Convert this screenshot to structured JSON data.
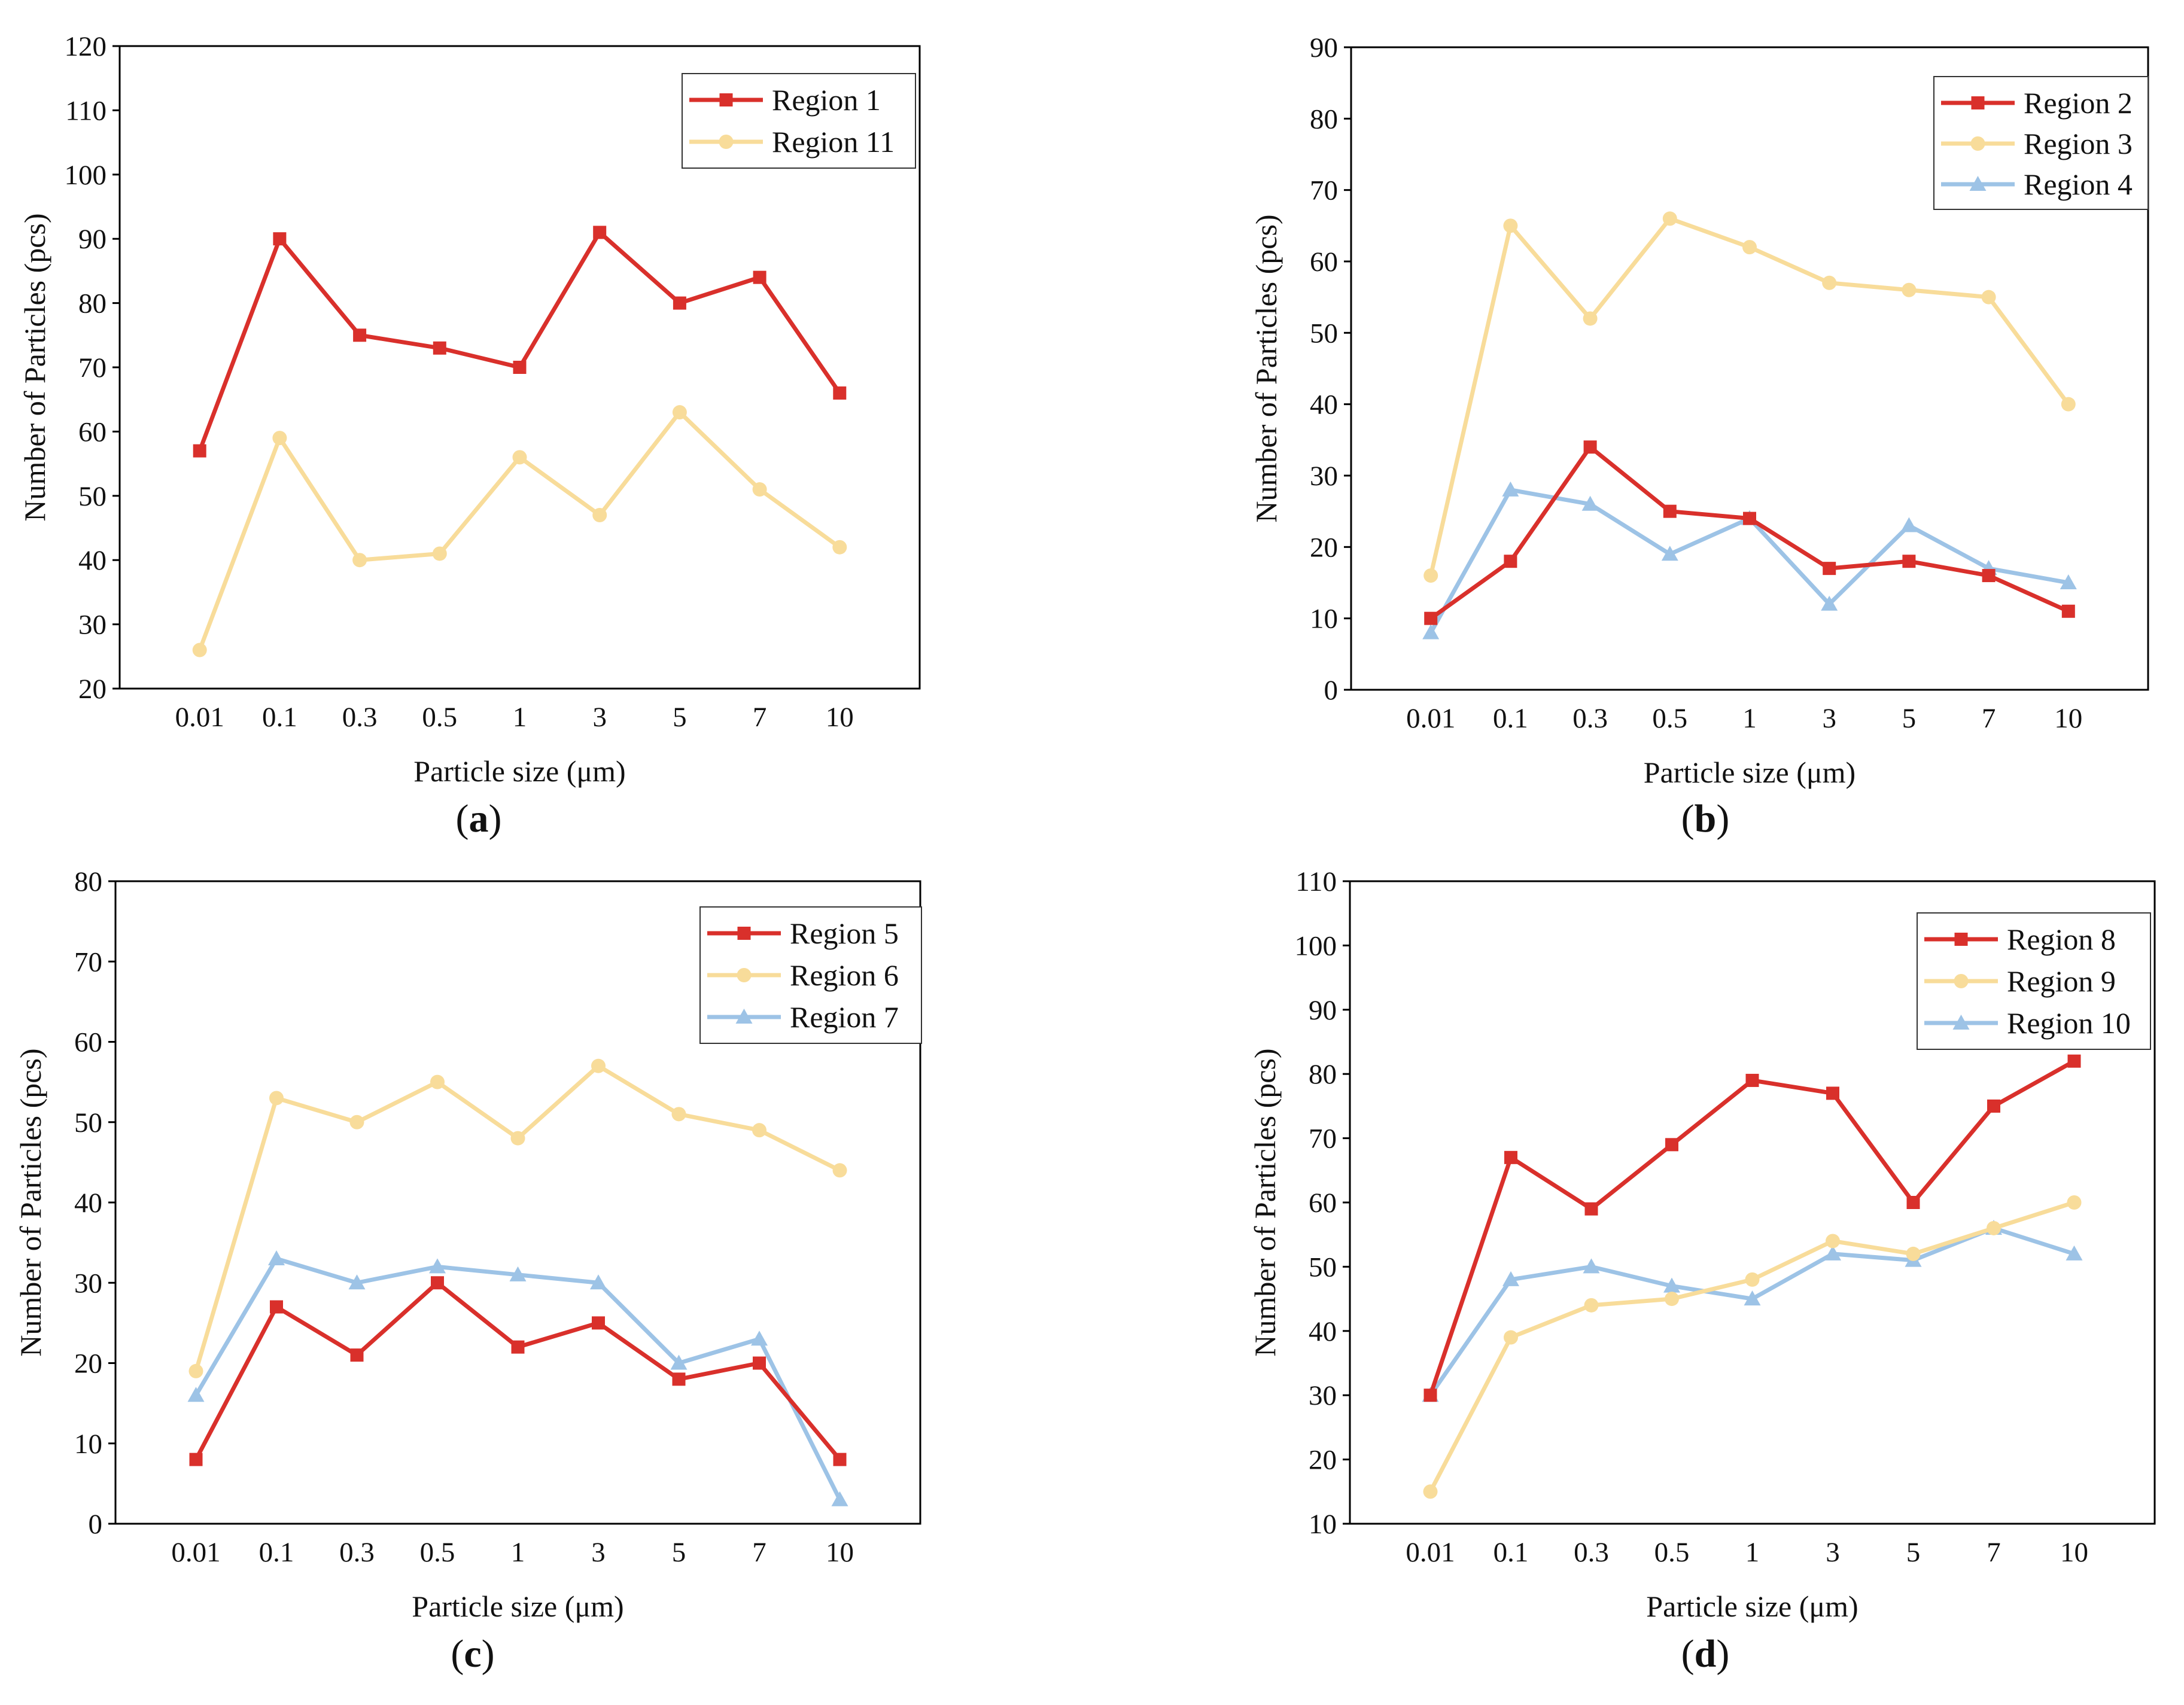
{
  "colors": {
    "red": "#d9302b",
    "yellow": "#f8dc9a",
    "blue": "#9dc3e6",
    "axis": "#000000"
  },
  "chart_data": [
    {
      "type": "line",
      "panel_label": "a",
      "categories": [
        "0.01",
        "0.1",
        "0.3",
        "0.5",
        "1",
        "3",
        "5",
        "7",
        "10"
      ],
      "xlabel": "Particle size (μm)",
      "ylabel": "Number of Particles (pcs)",
      "ylim": [
        20,
        120
      ],
      "yticks": [
        20,
        30,
        40,
        50,
        60,
        70,
        80,
        90,
        100,
        110,
        120
      ],
      "legend_position": "top-right",
      "series": [
        {
          "name": "Region 1",
          "color": "red",
          "marker": "square",
          "values": [
            57,
            90,
            75,
            73,
            70,
            91,
            80,
            84,
            66
          ]
        },
        {
          "name": "Region 11",
          "color": "yellow",
          "marker": "circle",
          "values": [
            26,
            59,
            40,
            41,
            56,
            47,
            63,
            51,
            42
          ]
        }
      ]
    },
    {
      "type": "line",
      "panel_label": "b",
      "categories": [
        "0.01",
        "0.1",
        "0.3",
        "0.5",
        "1",
        "3",
        "5",
        "7",
        "10"
      ],
      "xlabel": "Particle size (μm)",
      "ylabel": "Number of Particles (pcs)",
      "ylim": [
        0,
        90
      ],
      "yticks": [
        0,
        10,
        20,
        30,
        40,
        50,
        60,
        70,
        80,
        90
      ],
      "legend_position": "top-right",
      "series": [
        {
          "name": "Region 2",
          "color": "red",
          "marker": "square",
          "values": [
            10,
            18,
            34,
            25,
            24,
            17,
            18,
            16,
            11
          ]
        },
        {
          "name": "Region 3",
          "color": "yellow",
          "marker": "circle",
          "values": [
            16,
            65,
            52,
            66,
            62,
            57,
            56,
            55,
            40
          ]
        },
        {
          "name": "Region 4",
          "color": "blue",
          "marker": "triangle",
          "values": [
            8,
            28,
            26,
            19,
            24,
            12,
            23,
            17,
            15
          ]
        }
      ]
    },
    {
      "type": "line",
      "panel_label": "c",
      "categories": [
        "0.01",
        "0.1",
        "0.3",
        "0.5",
        "1",
        "3",
        "5",
        "7",
        "10"
      ],
      "xlabel": "Particle size (μm)",
      "ylabel": "Number of Particles (pcs)",
      "ylim": [
        0,
        80
      ],
      "yticks": [
        0,
        10,
        20,
        30,
        40,
        50,
        60,
        70,
        80
      ],
      "legend_position": "top-right",
      "series": [
        {
          "name": "Region 5",
          "color": "red",
          "marker": "square",
          "values": [
            8,
            27,
            21,
            30,
            22,
            25,
            18,
            20,
            8
          ]
        },
        {
          "name": "Region 6",
          "color": "yellow",
          "marker": "circle",
          "values": [
            19,
            53,
            50,
            55,
            48,
            57,
            51,
            49,
            44
          ]
        },
        {
          "name": "Region 7",
          "color": "blue",
          "marker": "triangle",
          "values": [
            16,
            33,
            30,
            32,
            31,
            30,
            20,
            23,
            3
          ]
        }
      ]
    },
    {
      "type": "line",
      "panel_label": "d",
      "categories": [
        "0.01",
        "0.1",
        "0.3",
        "0.5",
        "1",
        "3",
        "5",
        "7",
        "10"
      ],
      "xlabel": "Particle size (μm)",
      "ylabel": "Number of Particles (pcs)",
      "ylim": [
        10,
        110
      ],
      "yticks": [
        10,
        20,
        30,
        40,
        50,
        60,
        70,
        80,
        90,
        100,
        110
      ],
      "legend_position": "top-right",
      "series": [
        {
          "name": "Region 8",
          "color": "red",
          "marker": "square",
          "values": [
            30,
            67,
            59,
            69,
            79,
            77,
            60,
            75,
            82
          ]
        },
        {
          "name": "Region 9",
          "color": "yellow",
          "marker": "circle",
          "values": [
            15,
            39,
            44,
            45,
            48,
            54,
            52,
            56,
            60
          ]
        },
        {
          "name": "Region 10",
          "color": "blue",
          "marker": "triangle",
          "values": [
            30,
            48,
            50,
            47,
            45,
            52,
            51,
            56,
            52
          ]
        }
      ]
    }
  ]
}
